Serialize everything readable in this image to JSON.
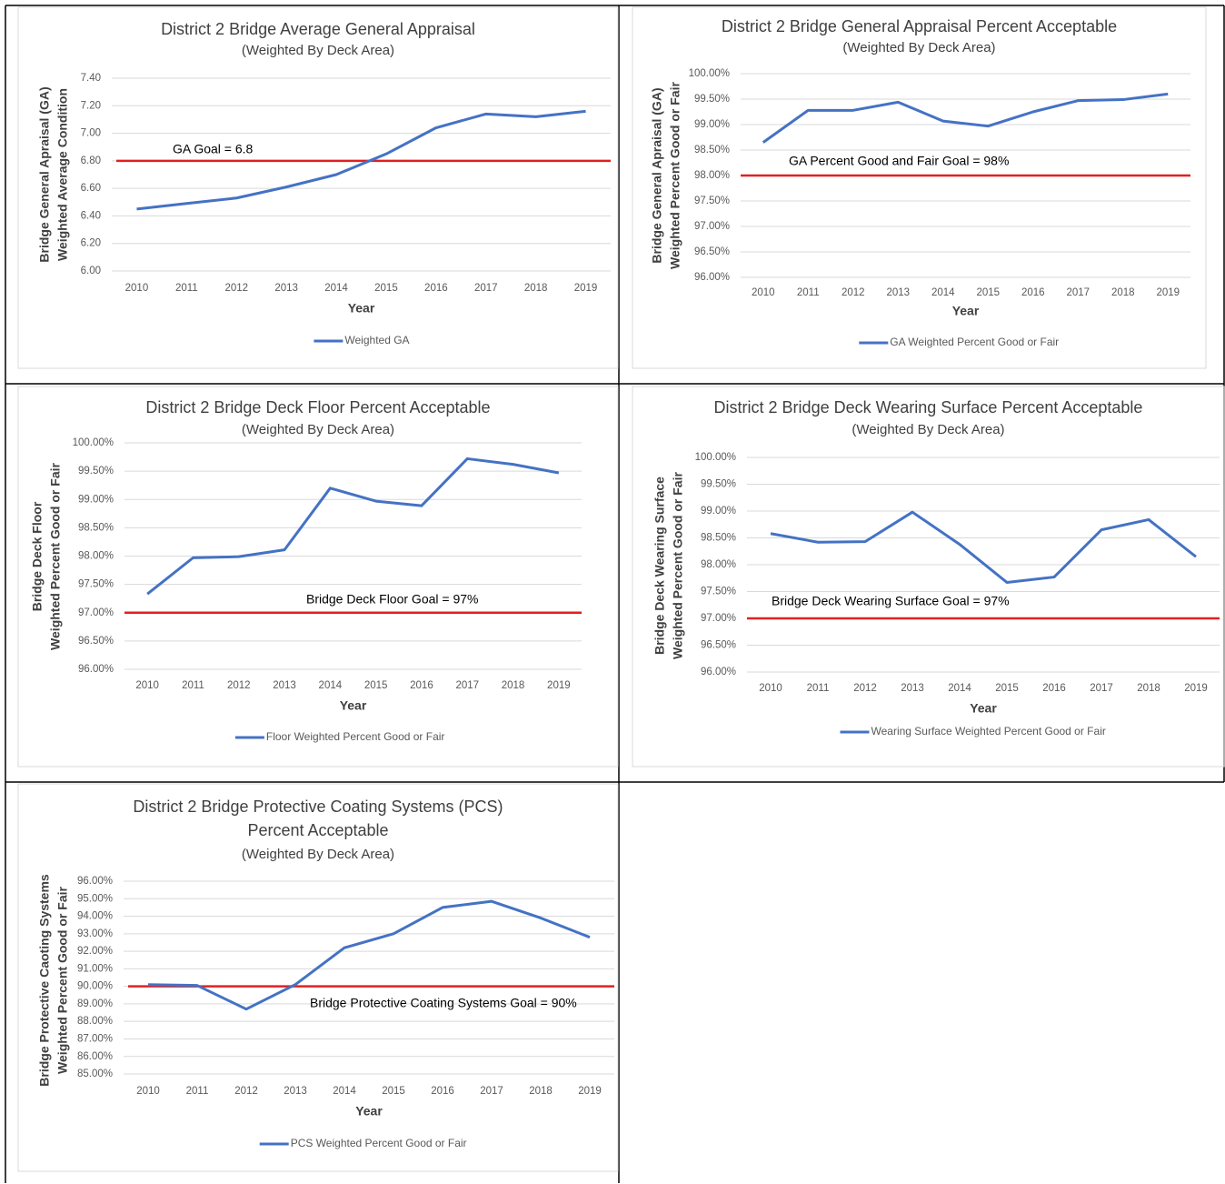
{
  "chart_data": [
    {
      "type": "line",
      "title": [
        "District 2 Bridge Average General Appraisal"
      ],
      "subtitle": "(Weighted By Deck Area)",
      "y_label": [
        "Bridge General Apraisal (GA)",
        "Weighted Average Condition"
      ],
      "x_label": "Year",
      "categories": [
        "2010",
        "2011",
        "2012",
        "2013",
        "2014",
        "2015",
        "2016",
        "2017",
        "2018",
        "2019"
      ],
      "series": [
        {
          "name": "Weighted GA",
          "color": "#4472c4",
          "values": [
            6.45,
            6.49,
            6.53,
            6.61,
            6.7,
            6.85,
            7.04,
            7.14,
            7.12,
            7.16
          ]
        }
      ],
      "goal": {
        "label": "GA Goal = 6.8",
        "value": 6.8,
        "color": "#e02020"
      },
      "ylim": [
        6.0,
        7.4
      ],
      "yticks": [
        {
          "value": 6.0,
          "label": "6.00"
        },
        {
          "value": 6.2,
          "label": "6.20"
        },
        {
          "value": 6.4,
          "label": "6.40"
        },
        {
          "value": 6.6,
          "label": "6.60"
        },
        {
          "value": 6.8,
          "label": "6.80"
        },
        {
          "value": 7.0,
          "label": "7.00"
        },
        {
          "value": 7.2,
          "label": "7.20"
        },
        {
          "value": 7.4,
          "label": "7.40"
        }
      ],
      "grid": true,
      "legend": "bottom"
    },
    {
      "type": "line",
      "title": [
        "District 2 Bridge General Appraisal Percent Acceptable"
      ],
      "subtitle": "(Weighted By Deck Area)",
      "y_label": [
        "Bridge General Apraisal (GA)",
        "Weighted Percent Good or Fair"
      ],
      "x_label": "Year",
      "categories": [
        "2010",
        "2011",
        "2012",
        "2013",
        "2014",
        "2015",
        "2016",
        "2017",
        "2018",
        "2019"
      ],
      "series": [
        {
          "name": "GA Weighted Percent Good or Fair",
          "color": "#4472c4",
          "values": [
            98.65,
            99.28,
            99.28,
            99.44,
            99.07,
            98.97,
            99.25,
            99.47,
            99.49,
            99.6
          ]
        }
      ],
      "goal": {
        "label": "GA Percent Good and Fair Goal = 98%",
        "value": 98,
        "color": "#e02020"
      },
      "ylim": [
        96,
        100
      ],
      "yticks": [
        {
          "value": 96,
          "label": "96.00%"
        },
        {
          "value": 96.5,
          "label": "96.50%"
        },
        {
          "value": 97,
          "label": "97.00%"
        },
        {
          "value": 97.5,
          "label": "97.50%"
        },
        {
          "value": 98,
          "label": "98.00%"
        },
        {
          "value": 98.5,
          "label": "98.50%"
        },
        {
          "value": 99,
          "label": "99.00%"
        },
        {
          "value": 99.5,
          "label": "99.50%"
        },
        {
          "value": 100,
          "label": "100.00%"
        }
      ],
      "grid": true,
      "legend": "bottom"
    },
    {
      "type": "line",
      "title": [
        "District 2 Bridge Deck Floor Percent Acceptable"
      ],
      "subtitle": "(Weighted By Deck Area)",
      "y_label": [
        "Bridge Deck Floor",
        "Weighted Percent Good or Fair"
      ],
      "x_label": "Year",
      "categories": [
        "2010",
        "2011",
        "2012",
        "2013",
        "2014",
        "2015",
        "2016",
        "2017",
        "2018",
        "2019"
      ],
      "series": [
        {
          "name": "Floor  Weighted Percent Good or Fair",
          "color": "#4472c4",
          "values": [
            97.33,
            97.97,
            97.99,
            98.11,
            99.2,
            98.97,
            98.89,
            99.72,
            99.62,
            99.47
          ]
        }
      ],
      "goal": {
        "label": "Bridge Deck Floor Goal = 97%",
        "value": 97,
        "color": "#e02020"
      },
      "ylim": [
        96,
        100
      ],
      "yticks": [
        {
          "value": 96,
          "label": "96.00%"
        },
        {
          "value": 96.5,
          "label": "96.50%"
        },
        {
          "value": 97,
          "label": "97.00%"
        },
        {
          "value": 97.5,
          "label": "97.50%"
        },
        {
          "value": 98,
          "label": "98.00%"
        },
        {
          "value": 98.5,
          "label": "98.50%"
        },
        {
          "value": 99,
          "label": "99.00%"
        },
        {
          "value": 99.5,
          "label": "99.50%"
        },
        {
          "value": 100,
          "label": "100.00%"
        }
      ],
      "grid": true,
      "legend": "bottom"
    },
    {
      "type": "line",
      "title": [
        "District 2 Bridge Deck Wearing Surface Percent Acceptable"
      ],
      "subtitle": "(Weighted By Deck Area)",
      "y_label": [
        "Bridge Deck Wearing Surface",
        "Weighted Percent Good or Fair"
      ],
      "x_label": "Year",
      "categories": [
        "2010",
        "2011",
        "2012",
        "2013",
        "2014",
        "2015",
        "2016",
        "2017",
        "2018",
        "2019"
      ],
      "series": [
        {
          "name": "Wearing Surface Weighted Percent Good or Fair",
          "color": "#4472c4",
          "values": [
            98.58,
            98.42,
            98.43,
            98.98,
            98.38,
            97.67,
            97.77,
            98.65,
            98.84,
            98.15
          ]
        }
      ],
      "goal": {
        "label": "Bridge Deck Wearing Surface Goal = 97%",
        "value": 97,
        "color": "#e02020"
      },
      "ylim": [
        96,
        100
      ],
      "yticks": [
        {
          "value": 96,
          "label": "96.00%"
        },
        {
          "value": 96.5,
          "label": "96.50%"
        },
        {
          "value": 97,
          "label": "97.00%"
        },
        {
          "value": 97.5,
          "label": "97.50%"
        },
        {
          "value": 98,
          "label": "98.00%"
        },
        {
          "value": 98.5,
          "label": "98.50%"
        },
        {
          "value": 99,
          "label": "99.00%"
        },
        {
          "value": 99.5,
          "label": "99.50%"
        },
        {
          "value": 100,
          "label": "100.00%"
        }
      ],
      "grid": true,
      "legend": "bottom"
    },
    {
      "type": "line",
      "title": [
        "District 2 Bridge Protective Coating Systems (PCS)",
        "Percent Acceptable"
      ],
      "subtitle": "(Weighted By Deck Area)",
      "y_label": [
        "Bridge Protective Caoting Systems",
        "Weighted Percent Good or Fair"
      ],
      "x_label": "Year",
      "categories": [
        "2010",
        "2011",
        "2012",
        "2013",
        "2014",
        "2015",
        "2016",
        "2017",
        "2018",
        "2019"
      ],
      "series": [
        {
          "name": "PCS Weighted Percent Good or Fair",
          "color": "#4472c4",
          "values": [
            90.1,
            90.05,
            88.7,
            90.1,
            92.2,
            93.0,
            94.5,
            94.85,
            93.9,
            92.8
          ]
        }
      ],
      "goal": {
        "label": "Bridge Protective Coating Systems Goal = 90%",
        "value": 90,
        "color": "#e02020"
      },
      "ylim": [
        85,
        96
      ],
      "yticks": [
        {
          "value": 85,
          "label": "85.00%"
        },
        {
          "value": 86,
          "label": "86.00%"
        },
        {
          "value": 87,
          "label": "87.00%"
        },
        {
          "value": 88,
          "label": "88.00%"
        },
        {
          "value": 89,
          "label": "89.00%"
        },
        {
          "value": 90,
          "label": "90.00%"
        },
        {
          "value": 91,
          "label": "91.00%"
        },
        {
          "value": 92,
          "label": "92.00%"
        },
        {
          "value": 93,
          "label": "93.00%"
        },
        {
          "value": 94,
          "label": "94.00%"
        },
        {
          "value": 95,
          "label": "95.00%"
        },
        {
          "value": 96,
          "label": "96.00%"
        }
      ],
      "grid": true,
      "legend": "bottom"
    }
  ]
}
